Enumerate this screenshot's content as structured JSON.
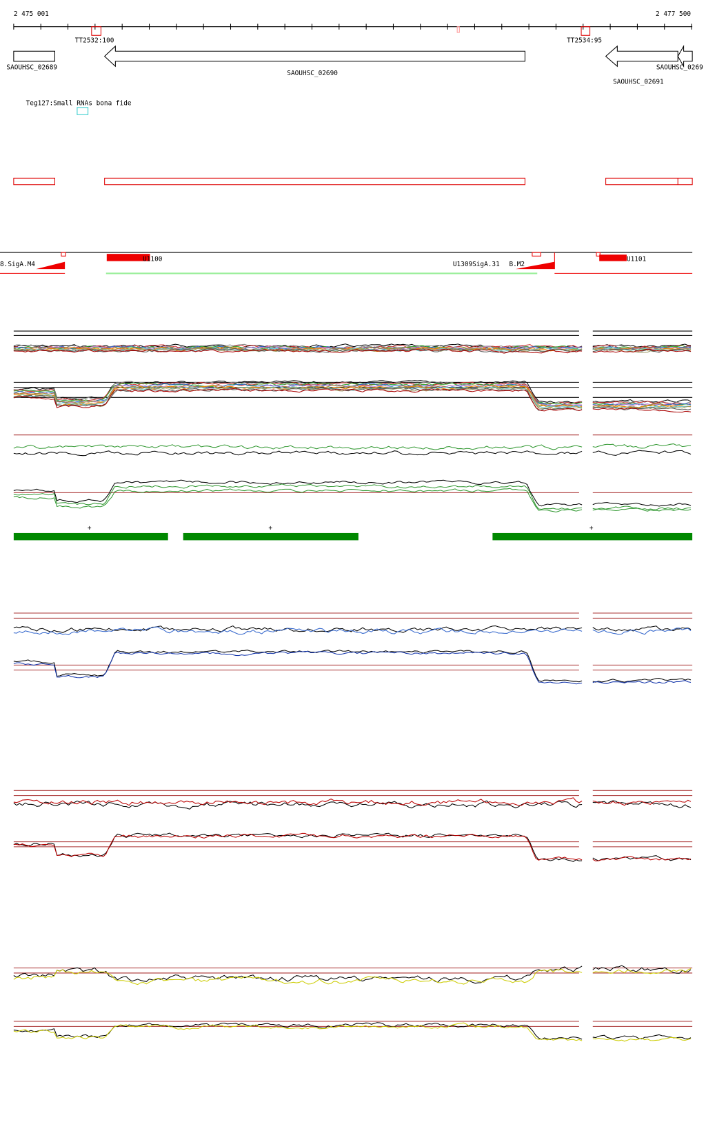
{
  "ruler": {
    "start": "2 475 001",
    "end": "2 477 500"
  },
  "terminators": [
    "TT2532:100",
    "TT2534:95"
  ],
  "genes": [
    "SAOUHSC_02689",
    "SAOUHSC_02690",
    "SAOUHSC_02691",
    "SAOUHSC_0269"
  ],
  "srna": "Teg127:Small RNAs bona fide",
  "promoters": [
    "8.SigA.M4",
    "U1100",
    "U1309",
    "SigA.31",
    "B.M2",
    "U1101"
  ],
  "strand_marks": [
    "+",
    "+",
    "+"
  ]
}
